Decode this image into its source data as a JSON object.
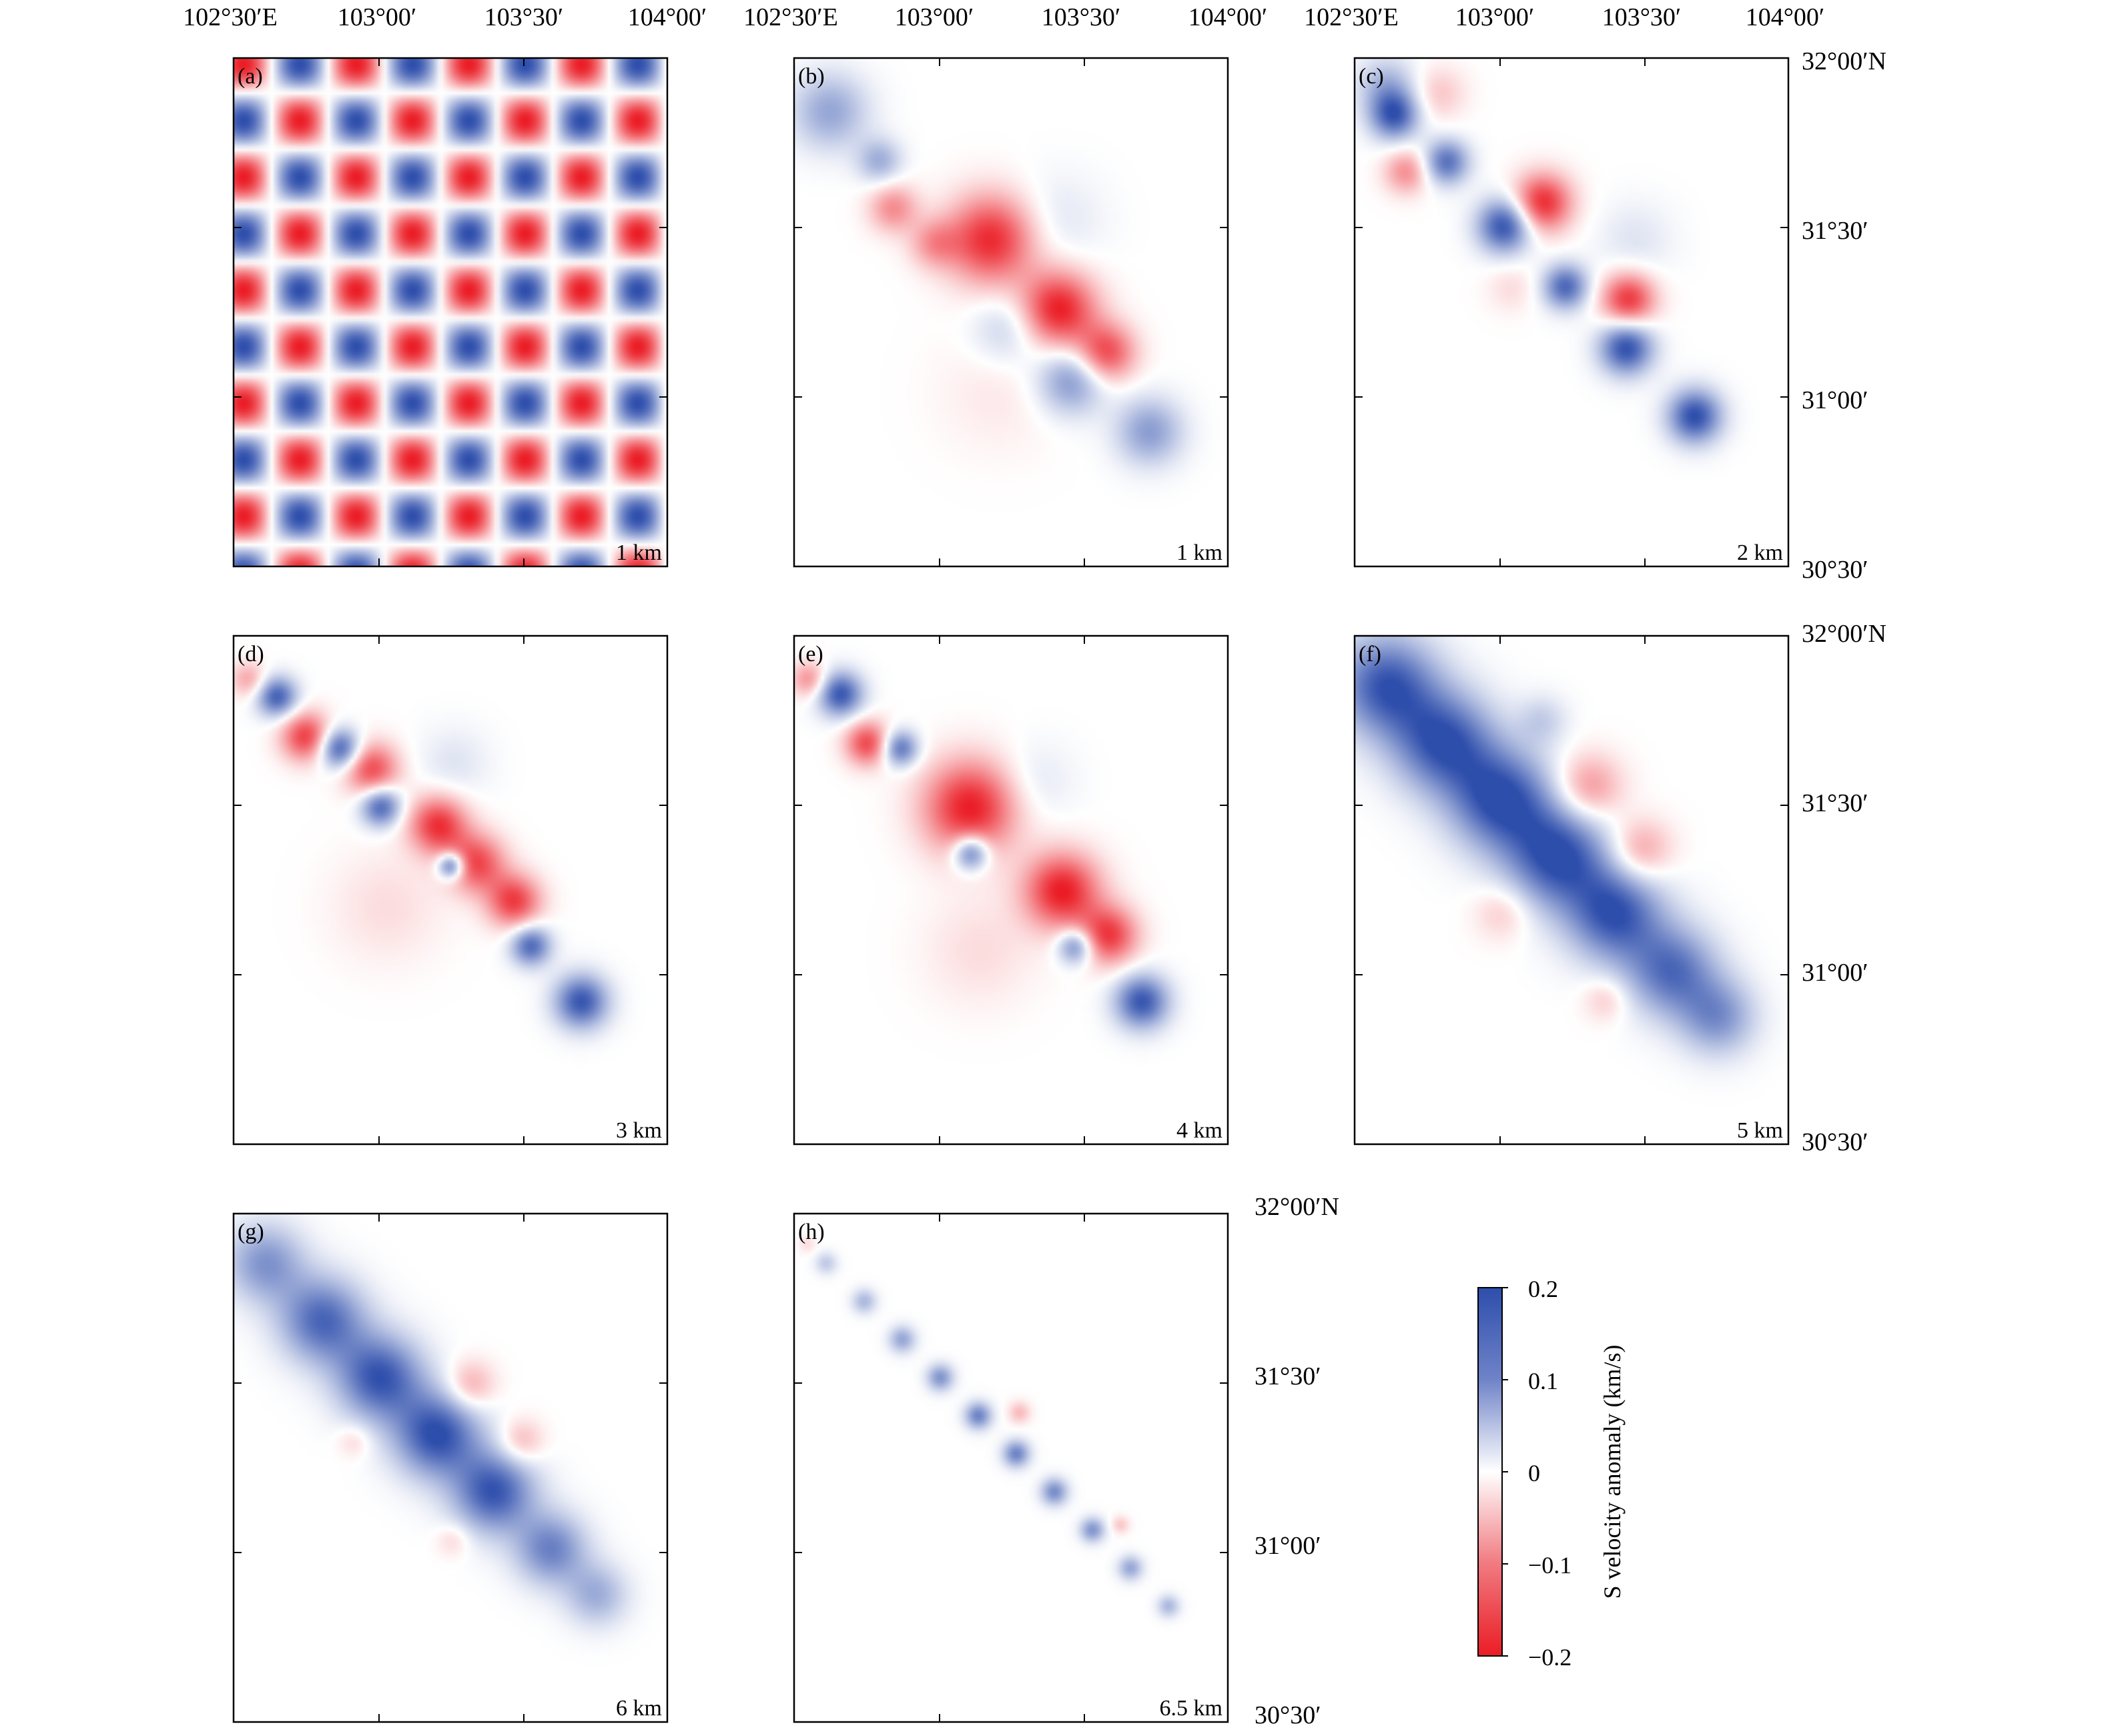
{
  "panels": [
    {
      "label": "(a)",
      "depth": "1 km",
      "kind": "checkerboard"
    },
    {
      "label": "(b)",
      "depth": "1 km",
      "kind": "recovered",
      "scale": 0.85,
      "blobs": [
        {
          "t": 0.06,
          "o": 0.0,
          "r": 0.34,
          "v": 0.1
        },
        {
          "t": 0.19,
          "o": 0.0,
          "r": 0.2,
          "v": 0.09
        },
        {
          "t": 0.27,
          "o": -0.3,
          "r": 0.22,
          "v": -0.1
        },
        {
          "t": 0.37,
          "o": -0.25,
          "r": 0.22,
          "v": -0.08
        },
        {
          "t": 0.44,
          "o": 0.3,
          "r": 0.4,
          "v": -0.19
        },
        {
          "t": 0.62,
          "o": 0.28,
          "r": 0.34,
          "v": -0.2
        },
        {
          "t": 0.74,
          "o": 0.32,
          "r": 0.26,
          "v": -0.16
        },
        {
          "t": 0.58,
          "o": -0.35,
          "r": 0.32,
          "v": 0.06
        },
        {
          "t": 0.73,
          "o": -0.25,
          "r": 0.3,
          "v": 0.12
        },
        {
          "t": 0.9,
          "o": 0.0,
          "r": 0.3,
          "v": 0.11
        },
        {
          "t": 0.5,
          "o": 1.05,
          "r": 0.42,
          "v": 0.03
        },
        {
          "t": 0.65,
          "o": -1.0,
          "r": 0.55,
          "v": -0.02
        }
      ]
    },
    {
      "label": "(c)",
      "depth": "2 km",
      "kind": "recovered",
      "scale": 0.85,
      "blobs": [
        {
          "t": 0.07,
          "o": 0.0,
          "r": 0.22,
          "v": 0.18
        },
        {
          "t": 0.02,
          "o": 0.2,
          "r": 0.26,
          "v": 0.08
        },
        {
          "t": 0.2,
          "o": 0.05,
          "r": 0.2,
          "v": 0.16
        },
        {
          "t": 0.16,
          "o": -0.4,
          "r": 0.2,
          "v": -0.1
        },
        {
          "t": 0.1,
          "o": 0.6,
          "r": 0.24,
          "v": -0.05
        },
        {
          "t": 0.36,
          "o": 0.0,
          "r": 0.24,
          "v": 0.2
        },
        {
          "t": 0.38,
          "o": 0.55,
          "r": 0.26,
          "v": -0.19
        },
        {
          "t": 0.52,
          "o": 0.0,
          "r": 0.2,
          "v": 0.17
        },
        {
          "t": 0.62,
          "o": 0.45,
          "r": 0.24,
          "v": -0.18
        },
        {
          "t": 0.68,
          "o": 0.0,
          "r": 0.24,
          "v": 0.2
        },
        {
          "t": 0.86,
          "o": 0.0,
          "r": 0.24,
          "v": 0.2
        },
        {
          "t": 0.45,
          "o": -0.5,
          "r": 0.22,
          "v": -0.03
        },
        {
          "t": 0.55,
          "o": 1.05,
          "r": 0.34,
          "v": 0.03
        }
      ]
    },
    {
      "label": "(d)",
      "depth": "3 km",
      "kind": "recovered",
      "scale": 0.85,
      "blobs": [
        {
          "t": 0.02,
          "o": -0.1,
          "r": 0.16,
          "v": -0.08
        },
        {
          "t": 0.08,
          "o": 0.0,
          "r": 0.18,
          "v": 0.18
        },
        {
          "t": 0.17,
          "o": -0.1,
          "r": 0.22,
          "v": -0.17
        },
        {
          "t": 0.23,
          "o": 0.1,
          "r": 0.18,
          "v": 0.19
        },
        {
          "t": 0.3,
          "o": 0.2,
          "r": 0.24,
          "v": -0.16
        },
        {
          "t": 0.36,
          "o": -0.05,
          "r": 0.18,
          "v": 0.18
        },
        {
          "t": 0.46,
          "o": 0.3,
          "r": 0.26,
          "v": -0.18
        },
        {
          "t": 0.53,
          "o": 0.05,
          "r": 0.12,
          "v": 0.2
        },
        {
          "t": 0.56,
          "o": 0.3,
          "r": 0.26,
          "v": -0.16
        },
        {
          "t": 0.66,
          "o": 0.3,
          "r": 0.24,
          "v": -0.17
        },
        {
          "t": 0.74,
          "o": 0.05,
          "r": 0.18,
          "v": 0.17
        },
        {
          "t": 0.88,
          "o": 0.0,
          "r": 0.24,
          "v": 0.19
        },
        {
          "t": 0.4,
          "o": 1.0,
          "r": 0.32,
          "v": 0.03
        },
        {
          "t": 0.5,
          "o": -0.9,
          "r": 0.5,
          "v": -0.03
        }
      ]
    },
    {
      "label": "(e)",
      "depth": "4 km",
      "kind": "recovered",
      "scale": 0.85,
      "blobs": [
        {
          "t": 0.02,
          "o": -0.1,
          "r": 0.16,
          "v": -0.1
        },
        {
          "t": 0.08,
          "o": 0.05,
          "r": 0.2,
          "v": 0.19
        },
        {
          "t": 0.18,
          "o": -0.15,
          "r": 0.2,
          "v": -0.16
        },
        {
          "t": 0.23,
          "o": 0.1,
          "r": 0.16,
          "v": 0.16
        },
        {
          "t": 0.4,
          "o": 0.2,
          "r": 0.42,
          "v": -0.2
        },
        {
          "t": 0.63,
          "o": 0.28,
          "r": 0.34,
          "v": -0.2
        },
        {
          "t": 0.75,
          "o": 0.3,
          "r": 0.26,
          "v": -0.17
        },
        {
          "t": 0.46,
          "o": -0.2,
          "r": 0.16,
          "v": 0.18
        },
        {
          "t": 0.72,
          "o": -0.1,
          "r": 0.16,
          "v": 0.15
        },
        {
          "t": 0.88,
          "o": 0.0,
          "r": 0.24,
          "v": 0.19
        },
        {
          "t": 0.45,
          "o": 1.0,
          "r": 0.35,
          "v": 0.03
        },
        {
          "t": 0.6,
          "o": -1.0,
          "r": 0.5,
          "v": -0.03
        }
      ]
    },
    {
      "label": "(f)",
      "depth": "5 km",
      "kind": "recovered",
      "scale": 0.85,
      "blobs": [
        {
          "t": 0.05,
          "o": 0.0,
          "r": 0.45,
          "v": 0.19
        },
        {
          "t": 0.2,
          "o": 0.0,
          "r": 0.45,
          "v": 0.19
        },
        {
          "t": 0.35,
          "o": 0.0,
          "r": 0.45,
          "v": 0.2
        },
        {
          "t": 0.5,
          "o": 0.0,
          "r": 0.45,
          "v": 0.2
        },
        {
          "t": 0.65,
          "o": 0.0,
          "r": 0.42,
          "v": 0.19
        },
        {
          "t": 0.8,
          "o": 0.0,
          "r": 0.4,
          "v": 0.16
        },
        {
          "t": 0.92,
          "o": 0.0,
          "r": 0.34,
          "v": 0.12
        },
        {
          "t": 0.45,
          "o": 0.9,
          "r": 0.3,
          "v": -0.1
        },
        {
          "t": 0.6,
          "o": 0.8,
          "r": 0.28,
          "v": -0.09
        },
        {
          "t": 0.3,
          "o": 1.1,
          "r": 0.22,
          "v": 0.05
        },
        {
          "t": 0.5,
          "o": -1.0,
          "r": 0.25,
          "v": -0.05
        },
        {
          "t": 0.75,
          "o": -0.85,
          "r": 0.2,
          "v": -0.05
        }
      ]
    },
    {
      "label": "(g)",
      "depth": "6 km",
      "kind": "recovered",
      "scale": 0.85,
      "blobs": [
        {
          "t": 0.05,
          "o": 0.0,
          "r": 0.35,
          "v": 0.12
        },
        {
          "t": 0.2,
          "o": 0.0,
          "r": 0.38,
          "v": 0.17
        },
        {
          "t": 0.35,
          "o": 0.0,
          "r": 0.38,
          "v": 0.19
        },
        {
          "t": 0.5,
          "o": 0.0,
          "r": 0.38,
          "v": 0.2
        },
        {
          "t": 0.65,
          "o": 0.0,
          "r": 0.36,
          "v": 0.19
        },
        {
          "t": 0.8,
          "o": 0.0,
          "r": 0.32,
          "v": 0.14
        },
        {
          "t": 0.92,
          "o": 0.0,
          "r": 0.28,
          "v": 0.09
        },
        {
          "t": 0.48,
          "o": 0.75,
          "r": 0.22,
          "v": -0.08
        },
        {
          "t": 0.62,
          "o": 0.7,
          "r": 0.2,
          "v": -0.07
        },
        {
          "t": 0.4,
          "o": -0.8,
          "r": 0.15,
          "v": -0.04
        },
        {
          "t": 0.66,
          "o": -0.8,
          "r": 0.15,
          "v": -0.04
        }
      ]
    },
    {
      "label": "(h)",
      "depth": "6.5 km",
      "kind": "recovered",
      "scale": 0.85,
      "blobs": [
        {
          "t": 0.05,
          "o": 0.0,
          "r": 0.1,
          "v": 0.06
        },
        {
          "t": 0.15,
          "o": 0.0,
          "r": 0.11,
          "v": 0.08
        },
        {
          "t": 0.25,
          "o": 0.0,
          "r": 0.12,
          "v": 0.1
        },
        {
          "t": 0.35,
          "o": 0.0,
          "r": 0.12,
          "v": 0.12
        },
        {
          "t": 0.45,
          "o": 0.0,
          "r": 0.12,
          "v": 0.14
        },
        {
          "t": 0.55,
          "o": 0.0,
          "r": 0.12,
          "v": 0.14
        },
        {
          "t": 0.65,
          "o": 0.0,
          "r": 0.12,
          "v": 0.13
        },
        {
          "t": 0.75,
          "o": 0.0,
          "r": 0.11,
          "v": 0.12
        },
        {
          "t": 0.85,
          "o": 0.0,
          "r": 0.11,
          "v": 0.1
        },
        {
          "t": 0.95,
          "o": 0.0,
          "r": 0.1,
          "v": 0.08
        },
        {
          "t": 0.5,
          "o": 0.4,
          "r": 0.1,
          "v": -0.06
        },
        {
          "t": 0.78,
          "o": 0.3,
          "r": 0.08,
          "v": -0.05
        },
        {
          "t": 0.0,
          "o": 0.0,
          "r": 0.08,
          "v": -0.03
        }
      ]
    }
  ],
  "axes": {
    "lon_ticks": [
      "102°30′E",
      "103°00′",
      "103°30′",
      "104°00′"
    ],
    "lat_ticks": [
      "32°00′N",
      "31°30′",
      "31°00′",
      "30°30′"
    ]
  },
  "colorbar": {
    "label": "S velocity anomaly (km/s)",
    "tick_labels": [
      "0.2",
      "0.1",
      "0",
      "−0.1",
      "−0.2"
    ],
    "vmin": -0.2,
    "vmax": 0.2,
    "color_high": "#2E4EAC",
    "color_mid": "#FFFFFF",
    "color_low": "#EB1C25"
  },
  "chart_data": {
    "type": "heatmap",
    "title": "",
    "xlabel": "",
    "ylabel": "",
    "x_ticks": [
      "102°30′E",
      "103°00′",
      "103°30′",
      "104°00′"
    ],
    "y_ticks": [
      "32°00′N",
      "31°30′",
      "31°00′",
      "30°30′"
    ],
    "xlim": [
      "102°30′E",
      "104°00′"
    ],
    "ylim": [
      "30°30′",
      "32°00′N"
    ],
    "value_range": [
      -0.2,
      0.2
    ],
    "colorbar_label": "S velocity anomaly (km/s)",
    "panels": [
      "(a) 1 km",
      "(b) 1 km",
      "(c) 2 km",
      "(d) 3 km",
      "(e) 4 km",
      "(f) 5 km",
      "(g) 6 km",
      "(h) 6.5 km"
    ]
  }
}
